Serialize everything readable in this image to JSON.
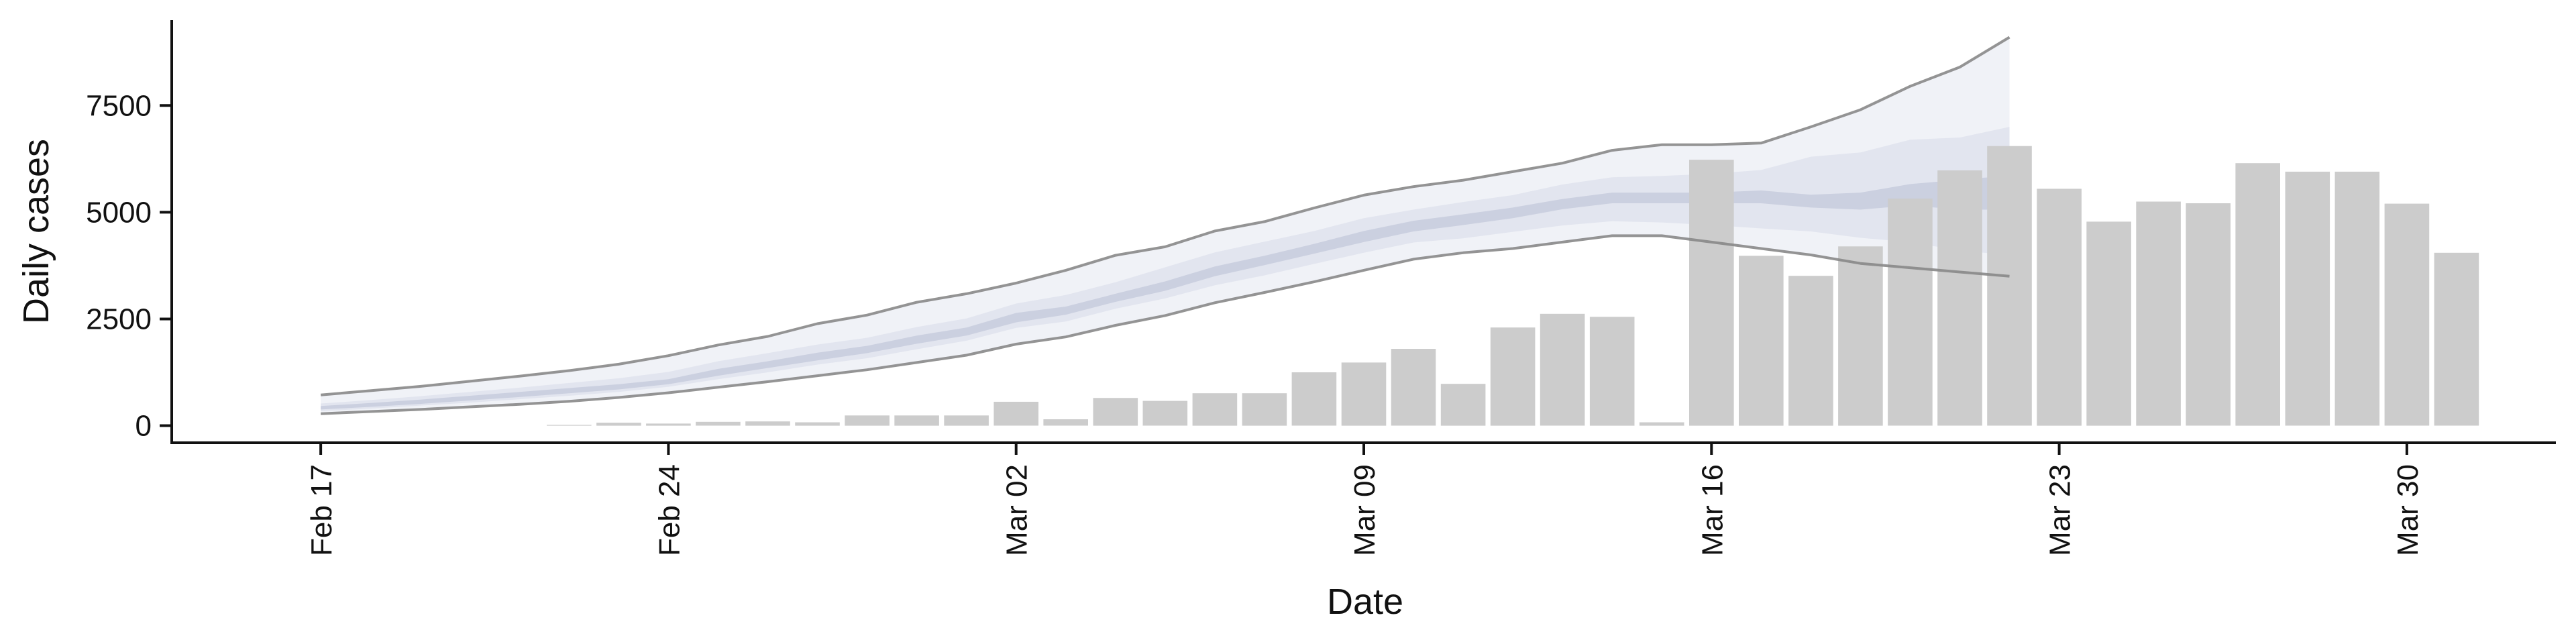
{
  "chart_data": {
    "type": "bar",
    "xlabel": "Date",
    "ylabel": "Daily cases",
    "x_axis": {
      "type": "date",
      "range": [
        "2020-02-14",
        "2020-04-02"
      ],
      "ticks": [
        {
          "date": "2020-02-17",
          "label": "Feb 17"
        },
        {
          "date": "2020-02-24",
          "label": "Feb 24"
        },
        {
          "date": "2020-03-02",
          "label": "Mar 02"
        },
        {
          "date": "2020-03-09",
          "label": "Mar 09"
        },
        {
          "date": "2020-03-16",
          "label": "Mar 16"
        },
        {
          "date": "2020-03-23",
          "label": "Mar 23"
        },
        {
          "date": "2020-03-30",
          "label": "Mar 30"
        }
      ]
    },
    "y_axis": {
      "range": [
        -400,
        9500
      ],
      "ticks": [
        0,
        2500,
        5000,
        7500
      ],
      "tick_labels": [
        "0",
        "2500",
        "5000",
        "7500"
      ]
    },
    "grid": false,
    "legend": "none",
    "colors": {
      "bars": "#cccccc",
      "band_outer": "#ebedf4",
      "band_mid": "#dde0ec",
      "band_inner": "#c5cadc",
      "bound_lines": "#888888",
      "axes": "#111111"
    },
    "bars": {
      "dates": [
        "2020-02-22",
        "2020-02-23",
        "2020-02-24",
        "2020-02-25",
        "2020-02-26",
        "2020-02-27",
        "2020-02-28",
        "2020-02-29",
        "2020-03-01",
        "2020-03-02",
        "2020-03-03",
        "2020-03-04",
        "2020-03-05",
        "2020-03-06",
        "2020-03-07",
        "2020-03-08",
        "2020-03-09",
        "2020-03-10",
        "2020-03-11",
        "2020-03-12",
        "2020-03-13",
        "2020-03-14",
        "2020-03-15",
        "2020-03-16",
        "2020-03-17",
        "2020-03-18",
        "2020-03-19",
        "2020-03-20",
        "2020-03-21",
        "2020-03-22",
        "2020-03-23",
        "2020-03-24",
        "2020-03-25",
        "2020-03-26",
        "2020-03-27",
        "2020-03-28",
        "2020-03-29",
        "2020-03-30",
        "2020-03-31"
      ],
      "values": [
        20,
        70,
        50,
        90,
        100,
        80,
        240,
        240,
        240,
        560,
        150,
        650,
        580,
        760,
        760,
        1250,
        1480,
        1800,
        980,
        2300,
        2620,
        2550,
        80,
        6230,
        3980,
        3510,
        4200,
        5320,
        5980,
        6550,
        5550,
        4780,
        5250,
        5210,
        6150,
        5950,
        5950,
        5200,
        4050
      ]
    },
    "estimate": {
      "dates": [
        "2020-02-17",
        "2020-02-18",
        "2020-02-19",
        "2020-02-20",
        "2020-02-21",
        "2020-02-22",
        "2020-02-23",
        "2020-02-24",
        "2020-02-25",
        "2020-02-26",
        "2020-02-27",
        "2020-02-28",
        "2020-02-29",
        "2020-03-01",
        "2020-03-02",
        "2020-03-03",
        "2020-03-04",
        "2020-03-05",
        "2020-03-06",
        "2020-03-07",
        "2020-03-08",
        "2020-03-09",
        "2020-03-10",
        "2020-03-11",
        "2020-03-12",
        "2020-03-13",
        "2020-03-14",
        "2020-03-15",
        "2020-03-16",
        "2020-03-17",
        "2020-03-18",
        "2020-03-19",
        "2020-03-20",
        "2020-03-21",
        "2020-03-22"
      ],
      "upper_90": [
        720,
        820,
        920,
        1040,
        1160,
        1290,
        1440,
        1640,
        1890,
        2090,
        2390,
        2590,
        2890,
        3090,
        3340,
        3640,
        3990,
        4190,
        4560,
        4780,
        5100,
        5400,
        5600,
        5750,
        5950,
        6150,
        6450,
        6580,
        6580,
        6620,
        7000,
        7400,
        7950,
        8400,
        9100
      ],
      "upper_50": [
        520,
        600,
        690,
        790,
        890,
        1000,
        1110,
        1260,
        1510,
        1700,
        1900,
        2060,
        2310,
        2510,
        2860,
        3060,
        3360,
        3710,
        4060,
        4310,
        4560,
        4860,
        5060,
        5240,
        5400,
        5650,
        5820,
        5850,
        5900,
        5990,
        6300,
        6400,
        6700,
        6750,
        7000
      ],
      "upper_20": [
        460,
        530,
        610,
        700,
        790,
        880,
        970,
        1090,
        1330,
        1510,
        1710,
        1870,
        2110,
        2300,
        2640,
        2790,
        3090,
        3380,
        3730,
        3980,
        4260,
        4560,
        4800,
        4950,
        5110,
        5310,
        5460,
        5460,
        5460,
        5510,
        5410,
        5460,
        5660,
        5760,
        5860
      ],
      "lower_20": [
        380,
        440,
        510,
        590,
        670,
        760,
        850,
        970,
        1170,
        1350,
        1530,
        1700,
        1920,
        2110,
        2420,
        2600,
        2900,
        3160,
        3500,
        3760,
        4030,
        4300,
        4550,
        4700,
        4860,
        5070,
        5210,
        5210,
        5210,
        5210,
        5110,
        5060,
        5160,
        5060,
        5060
      ],
      "lower_50": [
        340,
        400,
        470,
        540,
        620,
        700,
        790,
        910,
        1090,
        1250,
        1430,
        1580,
        1790,
        1990,
        2290,
        2440,
        2740,
        2980,
        3290,
        3520,
        3790,
        4050,
        4290,
        4390,
        4540,
        4690,
        4790,
        4760,
        4700,
        4620,
        4550,
        4400,
        4300,
        4100,
        4000
      ],
      "lower_90": [
        280,
        330,
        380,
        440,
        500,
        570,
        660,
        770,
        900,
        1030,
        1170,
        1310,
        1480,
        1650,
        1910,
        2080,
        2350,
        2580,
        2880,
        3120,
        3370,
        3640,
        3900,
        4050,
        4150,
        4300,
        4450,
        4450,
        4300,
        4150,
        4000,
        3800,
        3700,
        3600,
        3500
      ]
    }
  }
}
